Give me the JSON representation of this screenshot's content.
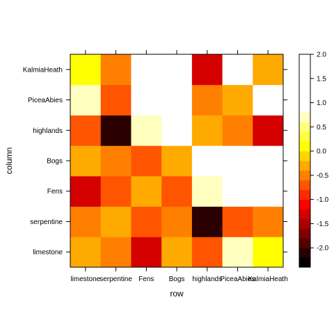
{
  "chart_data": {
    "type": "heatmap",
    "title": "",
    "xlabel": "row",
    "ylabel": "column",
    "x_categories": [
      "limestone",
      "serpentine",
      "Fens",
      "Bogs",
      "highlands",
      "PiceaAbies",
      "KalmiaHeath"
    ],
    "y_categories": [
      "limestone",
      "serpentine",
      "Fens",
      "Bogs",
      "highlands",
      "PiceaAbies",
      "KalmiaHeath"
    ],
    "z": [
      [
        -0.3,
        -0.45,
        -1.4,
        -0.3,
        -0.75,
        0.75,
        0.05
      ],
      [
        -0.45,
        -0.3,
        -0.8,
        -0.45,
        -2.2,
        -0.75,
        -0.45
      ],
      [
        -1.4,
        -0.8,
        -0.3,
        -0.8,
        0.75,
        2.0,
        1.2
      ],
      [
        -0.3,
        -0.45,
        -0.8,
        -0.3,
        1.3,
        0.95,
        1.0
      ],
      [
        -0.75,
        -2.2,
        0.75,
        1.3,
        -0.3,
        -0.45,
        -1.4
      ],
      [
        0.75,
        -0.75,
        2.0,
        0.95,
        -0.45,
        -0.3,
        1.0
      ],
      [
        0.05,
        -0.45,
        1.2,
        1.0,
        -1.4,
        1.05,
        -0.3
      ]
    ],
    "zlim": [
      -2.4,
      2.0
    ],
    "colorbar": {
      "breaks": [
        -2.4,
        -2.2,
        -2.0,
        -1.8,
        -1.6,
        -1.4,
        -1.2,
        -1.0,
        -0.8,
        -0.6,
        -0.4,
        -0.2,
        0.0,
        0.2,
        0.4,
        0.6,
        0.8,
        1.0,
        1.2,
        1.4,
        1.6,
        1.8,
        2.0
      ],
      "colors": [
        "#000000",
        "#2a0000",
        "#550000",
        "#800000",
        "#aa0000",
        "#d40000",
        "#ff0000",
        "#ff2a00",
        "#ff5500",
        "#ff8000",
        "#ffaa00",
        "#ffd400",
        "#ffff00",
        "#ffff40",
        "#ffff80",
        "#ffffbf",
        "#ffffff"
      ],
      "tick_values": [
        -2.0,
        -1.5,
        -1.0,
        -0.5,
        0.0,
        0.5,
        1.0,
        1.5,
        2.0
      ],
      "tick_labels": [
        "-2.0",
        "-1.5",
        "-1.0",
        "-0.5",
        "0.0",
        "0.5",
        "1.0",
        "1.5",
        "2.0"
      ]
    },
    "grid": false,
    "legend": "right"
  },
  "colors": {
    "low": "#000000",
    "mid": "#ff0000",
    "high": "#ffffff"
  }
}
